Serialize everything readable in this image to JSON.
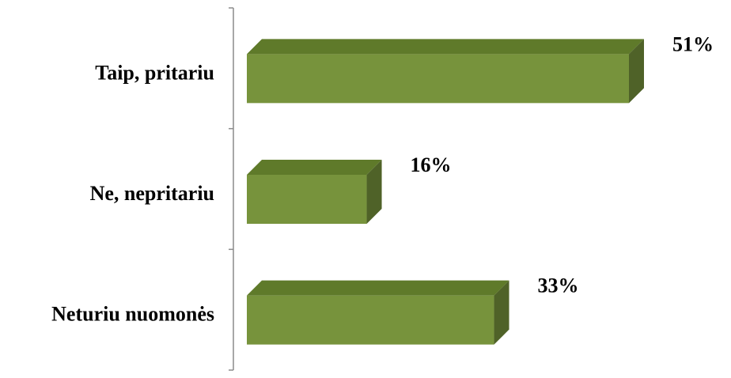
{
  "chart_data": {
    "type": "bar",
    "orientation": "horizontal",
    "three_d": true,
    "categories": [
      "Taip, pritariu",
      "Ne, nepritariu",
      "Neturiu nuomonės"
    ],
    "values": [
      51,
      16,
      33
    ],
    "value_labels": [
      "51%",
      "16%",
      "33%"
    ],
    "unit": "%",
    "xlim": [
      0,
      51
    ],
    "grid": false,
    "legend": "none",
    "colors": {
      "bar_front": "#77933c",
      "bar_top": "#5f7a2a",
      "bar_side": "#4f6228",
      "axis": "#8c8c8c"
    }
  }
}
